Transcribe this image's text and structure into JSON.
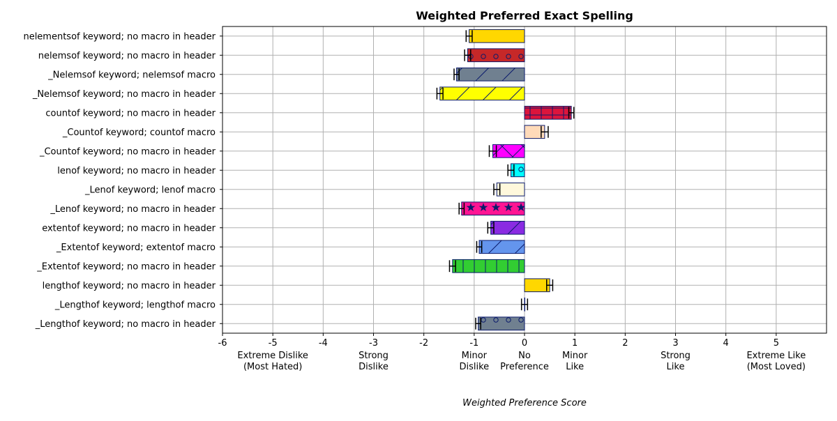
{
  "chart_data": {
    "type": "bar",
    "orientation": "horizontal",
    "title": "Weighted Preferred Exact Spelling",
    "xlabel": "Weighted Preference Score",
    "ylabel": "",
    "xlim": [
      -6,
      6
    ],
    "grid": true,
    "xticks": [
      -6,
      -5,
      -4,
      -3,
      -2,
      -1,
      0,
      1,
      2,
      3,
      4,
      5
    ],
    "tick_descriptions": [
      {
        "x": -5,
        "lines": [
          "Extreme Dislike",
          "(Most Hated)"
        ]
      },
      {
        "x": -3,
        "lines": [
          "Strong",
          "Dislike"
        ]
      },
      {
        "x": -1,
        "lines": [
          "Minor",
          "Dislike"
        ]
      },
      {
        "x": 0,
        "lines": [
          "No",
          "Preference"
        ]
      },
      {
        "x": 1,
        "lines": [
          "Minor",
          "Like"
        ]
      },
      {
        "x": 3,
        "lines": [
          "Strong",
          "Like"
        ]
      },
      {
        "x": 5,
        "lines": [
          "Extreme Like",
          "(Most Loved)"
        ]
      }
    ],
    "bars": [
      {
        "label": "nelementsof keyword; no macro in header",
        "value": -1.1,
        "error": 0.06,
        "color": "#ffd700",
        "pattern": "none"
      },
      {
        "label": "nelemsof keyword; no macro in header",
        "value": -1.13,
        "error": 0.06,
        "color": "#c62828",
        "pattern": "circles"
      },
      {
        "label": "_Nelemsof keyword; nelemsof macro",
        "value": -1.35,
        "error": 0.05,
        "color": "#708090",
        "pattern": "diagonal"
      },
      {
        "label": "_Nelemsof keyword; no macro in header",
        "value": -1.68,
        "error": 0.06,
        "color": "#ffff00",
        "pattern": "diagonal"
      },
      {
        "label": "countof keyword; no macro in header",
        "value": 0.93,
        "error": 0.05,
        "color": "#dc143c",
        "pattern": "grid"
      },
      {
        "label": "_Countof keyword; countof macro",
        "value": 0.4,
        "error": 0.07,
        "color": "#ffdab9",
        "pattern": "none"
      },
      {
        "label": "_Countof keyword; no macro in header",
        "value": -0.63,
        "error": 0.07,
        "color": "#ff00ff",
        "pattern": "cross"
      },
      {
        "label": "lenof keyword; no macro in header",
        "value": -0.27,
        "error": 0.06,
        "color": "#00ffff",
        "pattern": "circles"
      },
      {
        "label": "_Lenof keyword; lenof macro",
        "value": -0.55,
        "error": 0.06,
        "color": "#fff8dc",
        "pattern": "none"
      },
      {
        "label": "_Lenof keyword; no macro in header",
        "value": -1.25,
        "error": 0.05,
        "color": "#ff1493",
        "pattern": "stars"
      },
      {
        "label": "extentof keyword; no macro in header",
        "value": -0.67,
        "error": 0.06,
        "color": "#8a2be2",
        "pattern": "diagonal"
      },
      {
        "label": "_Extentof keyword; extentof macro",
        "value": -0.9,
        "error": 0.05,
        "color": "#6495ed",
        "pattern": "diagonal"
      },
      {
        "label": "_Extentof keyword; no macro in header",
        "value": -1.43,
        "error": 0.06,
        "color": "#32cd32",
        "pattern": "vertical"
      },
      {
        "label": "lengthof keyword; no macro in header",
        "value": 0.5,
        "error": 0.06,
        "color": "#ffd700",
        "pattern": "none"
      },
      {
        "label": "_Lengthof keyword; lengthof macro",
        "value": 0.0,
        "error": 0.06,
        "color": "#ffffff",
        "pattern": "none"
      },
      {
        "label": "_Lengthof keyword; no macro in header",
        "value": -0.92,
        "error": 0.05,
        "color": "#708090",
        "pattern": "circles"
      }
    ]
  }
}
